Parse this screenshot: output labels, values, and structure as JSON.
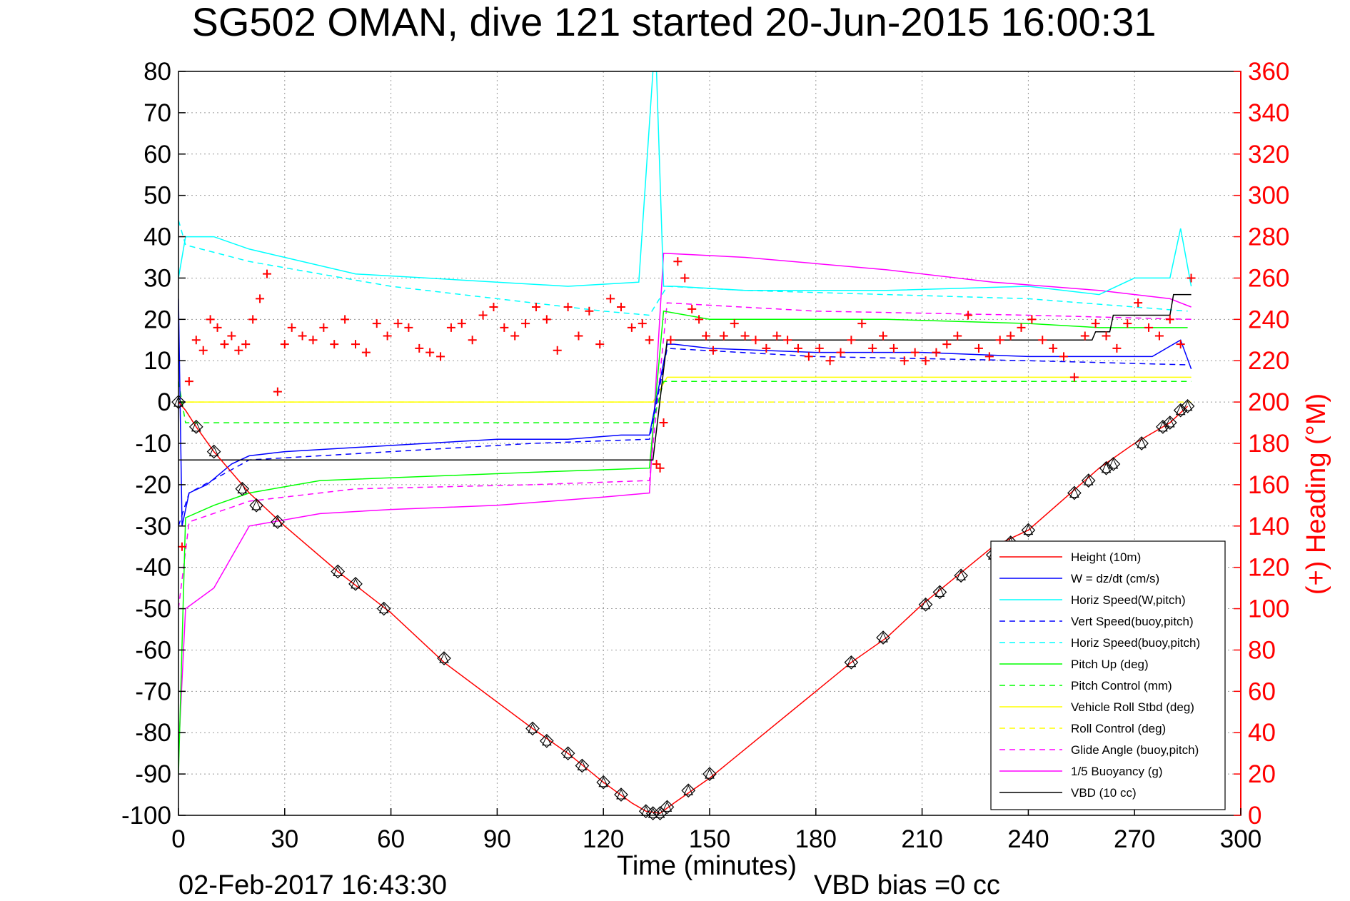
{
  "chart_data": {
    "type": "line",
    "title": "SG502 OMAN, dive 121 started 20-Jun-2015 16:00:31",
    "xlabel": "Time (minutes)",
    "ylabel_right": "(+) Heading (°M)",
    "timestamp": "02-Feb-2017 16:43:30",
    "vbd_bias": "VBD bias =0 cc",
    "xlim": [
      0,
      300
    ],
    "ylim_left": [
      -100,
      80
    ],
    "ylim_right": [
      0,
      360
    ],
    "x_ticks": [
      "0",
      "30",
      "60",
      "90",
      "120",
      "150",
      "180",
      "210",
      "240",
      "270",
      "300"
    ],
    "y_ticks_left": [
      "80",
      "70",
      "60",
      "50",
      "40",
      "30",
      "20",
      "10",
      "0",
      "-10",
      "-20",
      "-30",
      "-40",
      "-50",
      "-60",
      "-70",
      "-80",
      "-90",
      "-100"
    ],
    "y_ticks_right": [
      "360",
      "340",
      "320",
      "300",
      "280",
      "260",
      "240",
      "220",
      "200",
      "180",
      "160",
      "140",
      "120",
      "100",
      "80",
      "60",
      "40",
      "20",
      "0"
    ],
    "grid": true,
    "legend_position": "bottom-right",
    "colors": {
      "height": "#ff0000",
      "w": "#0000ff",
      "horiz": "#00ffff",
      "pitch": "#00ff00",
      "roll": "#ffff00",
      "glide": "#ff00ff",
      "buoy": "#ff00ff",
      "vbd": "#000000",
      "heading": "#ff0000",
      "axis": "#000000",
      "axis_right": "#ff0000"
    },
    "series": [
      {
        "name": "Height (10m)",
        "color": "#ff0000",
        "style": "solid",
        "x": [
          0,
          2,
          5,
          10,
          20,
          30,
          45,
          60,
          75,
          100,
          110,
          120,
          128,
          132,
          136,
          140,
          150,
          190,
          200,
          210,
          220,
          230,
          240,
          260,
          270,
          280,
          285
        ],
        "y": [
          0,
          -2,
          -6,
          -12,
          -22,
          -30,
          -41,
          -51,
          -63,
          -79,
          -85,
          -92,
          -97,
          -99,
          -99.5,
          -97,
          -91,
          -63,
          -57,
          -49,
          -42,
          -35,
          -31,
          -16,
          -10,
          -5,
          -1
        ]
      },
      {
        "name": "W = dz/dt (cm/s)",
        "color": "#0000ff",
        "style": "solid",
        "x": [
          0,
          1,
          3,
          8,
          15,
          20,
          30,
          50,
          70,
          90,
          110,
          125,
          133,
          138,
          140,
          150,
          180,
          210,
          240,
          260,
          275,
          283,
          286
        ],
        "y": [
          25,
          -30,
          -22,
          -20,
          -15,
          -13,
          -12,
          -11,
          -10,
          -9,
          -9,
          -8,
          -8,
          14,
          14,
          13,
          12,
          12,
          11,
          11,
          11,
          15,
          8
        ]
      },
      {
        "name": "Horiz Speed(W,pitch)",
        "color": "#00ffff",
        "style": "solid",
        "x": [
          0,
          2,
          10,
          20,
          30,
          50,
          70,
          90,
          110,
          130,
          134,
          135,
          137,
          140,
          160,
          200,
          240,
          260,
          270,
          280,
          283,
          286
        ],
        "y": [
          30,
          40,
          40,
          37,
          35,
          31,
          30,
          29,
          28,
          29,
          80,
          80,
          28,
          28,
          27,
          27,
          28,
          26,
          30,
          30,
          42,
          28
        ]
      },
      {
        "name": "Vert Speed(buoy,pitch)",
        "color": "#0000ff",
        "style": "dash",
        "x": [
          0,
          3,
          20,
          60,
          100,
          133,
          138,
          180,
          240,
          285
        ],
        "y": [
          -30,
          -22,
          -14,
          -12,
          -10,
          -9,
          13,
          11,
          10,
          9
        ]
      },
      {
        "name": "Horiz Speed(buoy,pitch)",
        "color": "#00ffff",
        "style": "dash",
        "x": [
          0,
          2,
          20,
          40,
          60,
          80,
          100,
          120,
          133,
          138,
          160,
          200,
          240,
          270,
          285
        ],
        "y": [
          44,
          38,
          34,
          31,
          28,
          26,
          24,
          22,
          21,
          28,
          27,
          26,
          25,
          23,
          22
        ]
      },
      {
        "name": "Pitch Up (deg)",
        "color": "#00ff00",
        "style": "solid",
        "x": [
          0,
          2,
          10,
          20,
          40,
          70,
          100,
          133,
          137,
          150,
          200,
          240,
          260,
          285
        ],
        "y": [
          -90,
          -28,
          -25,
          -22,
          -19,
          -18,
          -17,
          -16,
          22,
          20,
          20,
          19,
          18,
          18
        ]
      },
      {
        "name": "Pitch Control (mm)",
        "color": "#00ff00",
        "style": "dash",
        "x": [
          0,
          2,
          134,
          137,
          286
        ],
        "y": [
          5,
          -5,
          -5,
          5,
          5
        ]
      },
      {
        "name": "Vehicle Roll Stbd (deg)",
        "color": "#ffff00",
        "style": "solid",
        "x": [
          0,
          3,
          30,
          60,
          90,
          120,
          134,
          138,
          180,
          220,
          260,
          286
        ],
        "y": [
          0,
          0,
          0,
          0,
          0,
          0,
          0,
          6,
          6,
          6,
          6,
          6
        ]
      },
      {
        "name": "Roll Control (deg)",
        "color": "#ffff00",
        "style": "dash",
        "x": [
          0,
          134,
          137,
          286
        ],
        "y": [
          0,
          0,
          0,
          0
        ]
      },
      {
        "name": "Glide Angle (buoy,pitch)",
        "color": "#ff00ff",
        "style": "dash",
        "x": [
          0,
          3,
          20,
          50,
          100,
          133,
          138,
          180,
          240,
          286
        ],
        "y": [
          -50,
          -29,
          -24,
          -21,
          -20,
          -19,
          24,
          22,
          21,
          20
        ]
      },
      {
        "name": "1/5 Buoyancy (g)",
        "color": "#ff00ff",
        "style": "solid",
        "x": [
          0,
          2,
          10,
          20,
          40,
          60,
          90,
          120,
          133,
          137,
          160,
          200,
          230,
          260,
          280,
          286
        ],
        "y": [
          -85,
          -50,
          -45,
          -30,
          -27,
          -26,
          -25,
          -23,
          -22,
          36,
          35,
          32,
          29,
          27,
          25,
          23
        ]
      },
      {
        "name": "VBD (10 cc)",
        "color": "#000000",
        "style": "solid",
        "x": [
          0,
          2,
          18,
          19,
          134,
          138,
          150,
          258,
          259,
          263,
          264,
          280,
          281,
          286
        ],
        "y": [
          -14,
          -14,
          -14,
          -14,
          -14,
          15,
          15,
          15,
          17,
          17,
          21,
          21,
          26,
          26
        ]
      }
    ],
    "heading": {
      "name": "(+) Heading",
      "axis": "right",
      "color": "#ff0000",
      "marker": "+",
      "x": [
        1,
        3,
        5,
        7,
        9,
        11,
        13,
        15,
        17,
        19,
        21,
        23,
        25,
        28,
        30,
        32,
        35,
        38,
        41,
        44,
        47,
        50,
        53,
        56,
        59,
        62,
        65,
        68,
        71,
        74,
        77,
        80,
        83,
        86,
        89,
        92,
        95,
        98,
        101,
        104,
        107,
        110,
        113,
        116,
        119,
        122,
        125,
        128,
        131,
        133,
        135,
        136,
        137,
        139,
        141,
        143,
        145,
        147,
        149,
        151,
        154,
        157,
        160,
        163,
        166,
        169,
        172,
        175,
        178,
        181,
        184,
        187,
        190,
        193,
        196,
        199,
        202,
        205,
        208,
        211,
        214,
        217,
        220,
        223,
        226,
        229,
        232,
        235,
        238,
        241,
        244,
        247,
        250,
        253,
        256,
        259,
        262,
        265,
        268,
        271,
        274,
        277,
        280,
        283,
        286
      ],
      "y": [
        130,
        210,
        230,
        225,
        240,
        236,
        228,
        232,
        225,
        228,
        240,
        250,
        262,
        205,
        228,
        236,
        232,
        230,
        236,
        228,
        240,
        228,
        224,
        238,
        232,
        238,
        236,
        226,
        224,
        222,
        236,
        238,
        230,
        242,
        246,
        236,
        232,
        238,
        246,
        240,
        225,
        246,
        232,
        244,
        228,
        250,
        246,
        236,
        238,
        230,
        170,
        168,
        190,
        230,
        268,
        260,
        245,
        240,
        232,
        225,
        232,
        238,
        232,
        230,
        226,
        232,
        230,
        226,
        222,
        226,
        220,
        224,
        230,
        238,
        226,
        232,
        226,
        220,
        224,
        220,
        224,
        228,
        232,
        242,
        226,
        222,
        230,
        232,
        236,
        240,
        230,
        226,
        222,
        212,
        232,
        238,
        232,
        226,
        238,
        248,
        236,
        232,
        240,
        228,
        260
      ]
    },
    "markers": {
      "name": "Height markers",
      "color": "#000000",
      "x": [
        0,
        5,
        10,
        18,
        22,
        28,
        45,
        50,
        58,
        75,
        100,
        104,
        110,
        114,
        120,
        125,
        132,
        134,
        136,
        138,
        144,
        150,
        190,
        199,
        211,
        215,
        221,
        230,
        235,
        240,
        253,
        257,
        262,
        264,
        272,
        278,
        280,
        283,
        285
      ],
      "y": [
        0,
        -6,
        -12,
        -21,
        -25,
        -29,
        -41,
        -44,
        -50,
        -62,
        -79,
        -82,
        -85,
        -88,
        -92,
        -95,
        -99,
        -99.5,
        -99.5,
        -98,
        -94,
        -90,
        -63,
        -57,
        -49,
        -46,
        -42,
        -37,
        -34,
        -31,
        -22,
        -19,
        -16,
        -15,
        -10,
        -6,
        -5,
        -2,
        -1
      ]
    }
  }
}
